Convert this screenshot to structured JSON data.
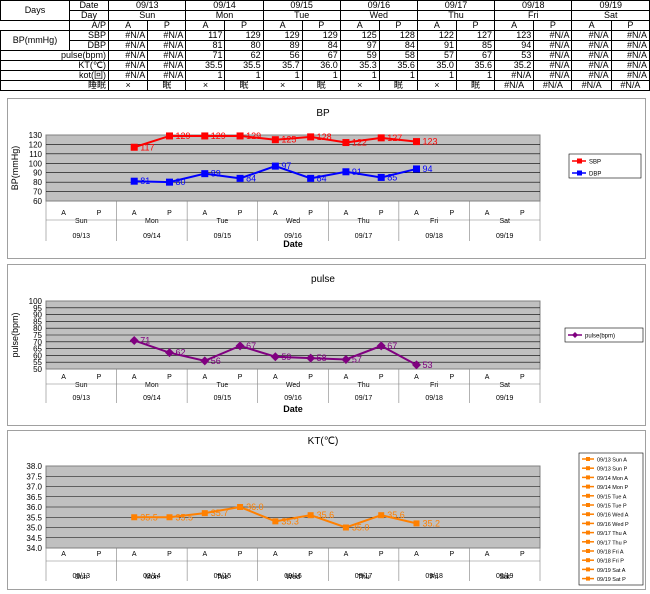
{
  "table": {
    "dates": [
      "09/13",
      "09/14",
      "09/15",
      "09/16",
      "09/17",
      "09/18",
      "09/19"
    ],
    "days": [
      "Sun",
      "Mon",
      "Tue",
      "Wed",
      "Thu",
      "Fri",
      "Sat"
    ],
    "labels": {
      "days": "Days",
      "date": "Date",
      "day": "Day",
      "ap": "A/P",
      "bp": "BP(mmHg)",
      "sbp": "SBP",
      "dbp": "DBP",
      "pulse": "pulse(bpm)",
      "kt": "KT(℃)",
      "kot": "kot(回)",
      "sleep": "睡眠"
    },
    "ap": [
      "A",
      "P",
      "A",
      "P",
      "A",
      "P",
      "A",
      "P",
      "A",
      "P",
      "A",
      "P",
      "A",
      "P"
    ],
    "sbp": [
      "#N/A",
      "#N/A",
      "117",
      "129",
      "129",
      "129",
      "125",
      "128",
      "122",
      "127",
      "123",
      "#N/A",
      "#N/A",
      "#N/A"
    ],
    "dbp": [
      "#N/A",
      "#N/A",
      "81",
      "80",
      "89",
      "84",
      "97",
      "84",
      "91",
      "85",
      "94",
      "#N/A",
      "#N/A",
      "#N/A"
    ],
    "pulse": [
      "#N/A",
      "#N/A",
      "71",
      "62",
      "56",
      "67",
      "59",
      "58",
      "57",
      "67",
      "53",
      "#N/A",
      "#N/A",
      "#N/A"
    ],
    "kt": [
      "#N/A",
      "#N/A",
      "35.5",
      "35.5",
      "35.7",
      "36.0",
      "35.3",
      "35.6",
      "35.0",
      "35.6",
      "35.2",
      "#N/A",
      "#N/A",
      "#N/A"
    ],
    "kot": [
      "#N/A",
      "#N/A",
      "1",
      "1",
      "1",
      "1",
      "1",
      "1",
      "1",
      "1",
      "#N/A",
      "#N/A",
      "#N/A",
      "#N/A"
    ],
    "sleep": [
      "×",
      "眠",
      "×",
      "眠",
      "×",
      "眠",
      "×",
      "眠",
      "×",
      "眠",
      "#N/A",
      "#N/A",
      "#N/A",
      "#N/A"
    ]
  },
  "chart_data": [
    {
      "type": "line",
      "title": "BP",
      "ylabel": "BP(mmHg)",
      "xlabel": "Date",
      "ylim": [
        60,
        130
      ],
      "yticks": [
        60,
        70,
        80,
        90,
        100,
        110,
        120,
        130
      ],
      "categories": [
        "A",
        "P",
        "A",
        "P",
        "A",
        "P",
        "A",
        "P",
        "A",
        "P",
        "A",
        "P",
        "A",
        "P"
      ],
      "days": [
        "Sun",
        "Mon",
        "Tue",
        "Wed",
        "Thu",
        "Fri",
        "Sat"
      ],
      "dates": [
        "09/13",
        "09/14",
        "09/15",
        "09/16",
        "09/17",
        "09/18",
        "09/19"
      ],
      "grid": true,
      "legend": "right",
      "marker": "square",
      "series": [
        {
          "name": "SBP",
          "color": "#ff0000",
          "values": [
            null,
            null,
            117,
            129,
            129,
            129,
            125,
            128,
            122,
            127,
            123,
            null,
            null,
            null
          ]
        },
        {
          "name": "DBP",
          "color": "#0000ff",
          "values": [
            null,
            null,
            81,
            80,
            89,
            84,
            97,
            84,
            91,
            85,
            94,
            null,
            null,
            null
          ]
        }
      ]
    },
    {
      "type": "line",
      "title": "pulse",
      "ylabel": "pulse(bpm)",
      "xlabel": "Date",
      "ylim": [
        50,
        100
      ],
      "yticks": [
        50,
        55,
        60,
        65,
        70,
        75,
        80,
        85,
        90,
        95,
        100
      ],
      "categories": [
        "A",
        "P",
        "A",
        "P",
        "A",
        "P",
        "A",
        "P",
        "A",
        "P",
        "A",
        "P",
        "A",
        "P"
      ],
      "days": [
        "Sun",
        "Mon",
        "Tue",
        "Wed",
        "Thu",
        "Fri",
        "Sat"
      ],
      "dates": [
        "09/13",
        "09/14",
        "09/15",
        "09/16",
        "09/17",
        "09/18",
        "09/19"
      ],
      "grid": true,
      "legend": "right",
      "marker": "diamond",
      "series": [
        {
          "name": "pulse(bpm)",
          "color": "#800080",
          "values": [
            null,
            null,
            71,
            62,
            56,
            67,
            59,
            58,
            57,
            67,
            53,
            null,
            null,
            null
          ]
        }
      ]
    },
    {
      "type": "line",
      "title": "KT(℃)",
      "ylabel": "",
      "xlabel": "",
      "ylim": [
        34.0,
        38.0
      ],
      "yticks": [
        "34.0",
        "34.5",
        "35.0",
        "35.5",
        "36.0",
        "36.5",
        "37.0",
        "37.5",
        "38.0"
      ],
      "categories": [
        "A",
        "P",
        "A",
        "P",
        "A",
        "P",
        "A",
        "P",
        "A",
        "P",
        "A",
        "P",
        "A",
        "P"
      ],
      "days": [
        "Sun",
        "Mon",
        "Tue",
        "Wed",
        "Thu",
        "Fri",
        "Sat"
      ],
      "dates": [
        "09/13",
        "09/14",
        "09/15",
        "09/16",
        "09/17",
        "09/18",
        "09/19"
      ],
      "grid": true,
      "legend": "right",
      "marker": "square",
      "legend_entries": [
        "09/13 Sun A",
        "09/13 Sun P",
        "09/14 Mon A",
        "09/14 Mon P",
        "09/15 Tue A",
        "09/15 Tue P",
        "09/16 Wed A",
        "09/16 Wed P",
        "09/17 Thu A",
        "09/17 Thu P",
        "09/18 Fri A",
        "09/18 Fri P",
        "09/19 Sat A",
        "09/19 Sat P"
      ],
      "series": [
        {
          "name": "",
          "color": "#ff8000",
          "values": [
            null,
            null,
            35.5,
            35.5,
            35.7,
            36.0,
            35.3,
            35.6,
            35.0,
            35.6,
            35.2,
            null,
            null,
            null
          ],
          "labels": [
            null,
            null,
            "35.5",
            "35.5",
            "35.7",
            "36.0",
            "35.3",
            "35.6",
            "35.0",
            "35.6",
            "35.2",
            null,
            null,
            null
          ]
        }
      ]
    }
  ]
}
